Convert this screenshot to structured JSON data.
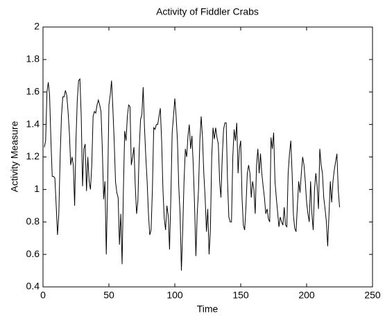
{
  "chart_data": {
    "type": "line",
    "title": "Activity of Fiddler Crabs",
    "x_label": "Time",
    "y_label": "Activity Measure",
    "x": [
      1,
      2,
      3,
      4,
      5,
      6,
      7,
      8,
      9,
      10,
      11,
      12,
      13,
      14,
      15,
      16,
      17,
      18,
      19,
      20,
      21,
      22,
      23,
      24,
      25,
      26,
      27,
      28,
      29,
      30,
      31,
      32,
      33,
      34,
      35,
      36,
      37,
      38,
      39,
      40,
      41,
      42,
      43,
      44,
      45,
      46,
      47,
      48,
      49,
      50,
      51,
      52,
      53,
      54,
      55,
      56,
      57,
      58,
      59,
      60,
      61,
      62,
      63,
      64,
      65,
      66,
      67,
      68,
      69,
      70,
      71,
      72,
      73,
      74,
      75,
      76,
      77,
      78,
      79,
      80,
      81,
      82,
      83,
      84,
      85,
      86,
      87,
      88,
      89,
      90,
      91,
      92,
      93,
      94,
      95,
      96,
      97,
      98,
      99,
      100,
      101,
      102,
      103,
      104,
      105,
      106,
      107,
      108,
      109,
      110,
      111,
      112,
      113,
      114,
      115,
      116,
      117,
      118,
      119,
      120,
      121,
      122,
      123,
      124,
      125,
      126,
      127,
      128,
      129,
      130,
      131,
      132,
      133,
      134,
      135,
      136,
      137,
      138,
      139,
      140,
      141,
      142,
      143,
      144,
      145,
      146,
      147,
      148,
      149,
      150,
      151,
      152,
      153,
      154,
      155,
      156,
      157,
      158,
      159,
      160,
      161,
      162,
      163,
      164,
      165,
      166,
      167,
      168,
      169,
      170,
      171,
      172,
      173,
      174,
      175,
      176,
      177,
      178,
      179,
      180,
      181,
      182,
      183,
      184,
      185,
      186,
      187,
      188,
      189,
      190,
      191,
      192,
      193,
      194,
      195,
      196,
      197,
      198,
      199,
      200,
      201,
      202,
      203,
      204,
      205,
      206,
      207,
      208,
      209,
      210,
      211,
      212,
      213,
      214,
      215,
      216,
      217,
      218,
      219,
      220,
      221,
      222,
      223,
      224,
      225
    ],
    "series": [
      {
        "name": "Activity",
        "color": "#000000",
        "values": [
          1.26,
          1.3,
          1.6,
          1.66,
          1.58,
          1.3,
          1.08,
          1.08,
          1.07,
          0.9,
          0.72,
          0.85,
          1.2,
          1.45,
          1.57,
          1.57,
          1.61,
          1.58,
          1.48,
          1.35,
          1.15,
          1.2,
          1.15,
          0.9,
          1.3,
          1.55,
          1.67,
          1.68,
          1.45,
          1.02,
          1.25,
          1.28,
          0.99,
          1.2,
          1.05,
          1.0,
          1.15,
          1.45,
          1.48,
          1.47,
          1.52,
          1.55,
          1.52,
          1.48,
          1.25,
          0.94,
          1.05,
          0.6,
          1.0,
          1.52,
          1.58,
          1.67,
          1.5,
          1.3,
          1.05,
          0.98,
          0.95,
          0.66,
          0.85,
          0.54,
          1.0,
          1.36,
          1.3,
          1.45,
          1.52,
          1.51,
          1.15,
          1.2,
          1.26,
          1.02,
          0.85,
          0.93,
          1.25,
          1.43,
          1.46,
          1.63,
          1.38,
          1.2,
          1.05,
          0.85,
          0.72,
          0.75,
          1.0,
          1.38,
          1.37,
          1.4,
          1.4,
          1.45,
          1.5,
          1.3,
          1.0,
          0.82,
          0.75,
          0.9,
          0.84,
          0.63,
          0.95,
          1.35,
          1.45,
          1.56,
          1.45,
          1.3,
          1.02,
          0.85,
          0.5,
          0.75,
          1.05,
          1.25,
          1.2,
          1.33,
          1.4,
          1.25,
          1.33,
          1.15,
          0.9,
          0.59,
          0.85,
          1.0,
          1.3,
          1.45,
          1.32,
          1.1,
          0.95,
          0.74,
          0.88,
          0.6,
          0.75,
          1.2,
          1.38,
          1.31,
          1.38,
          1.32,
          1.28,
          1.05,
          0.95,
          1.2,
          1.37,
          1.41,
          1.41,
          1.05,
          0.83,
          0.8,
          0.8,
          1.2,
          1.37,
          1.3,
          1.41,
          1.1,
          1.25,
          1.3,
          0.95,
          0.78,
          0.75,
          0.9,
          1.1,
          1.15,
          1.1,
          0.95,
          1.05,
          1.0,
          0.85,
          1.15,
          1.25,
          1.1,
          1.22,
          1.1,
          1.02,
          0.95,
          0.85,
          0.88,
          0.82,
          0.8,
          1.32,
          1.25,
          1.35,
          1.05,
          0.95,
          0.86,
          0.77,
          0.83,
          0.8,
          0.78,
          0.89,
          0.78,
          0.77,
          1.1,
          1.22,
          1.3,
          1.1,
          0.84,
          0.76,
          0.74,
          0.9,
          1.05,
          0.98,
          1.1,
          1.2,
          1.15,
          1.05,
          0.92,
          0.85,
          0.8,
          1.05,
          0.85,
          0.75,
          1.0,
          1.1,
          1.02,
          0.88,
          1.25,
          1.15,
          1.1,
          0.95,
          0.88,
          0.8,
          0.65,
          0.85,
          1.05,
          0.92,
          1.05,
          1.12,
          1.17,
          1.22,
          1.0,
          0.89
        ]
      }
    ],
    "xlim": [
      0,
      250
    ],
    "xticks": [
      0,
      50,
      100,
      150,
      200,
      250
    ],
    "ylim": [
      0.4,
      2
    ],
    "yticks": [
      0.4,
      0.6,
      0.8,
      1,
      1.2,
      1.4,
      1.6,
      1.8,
      2
    ]
  }
}
